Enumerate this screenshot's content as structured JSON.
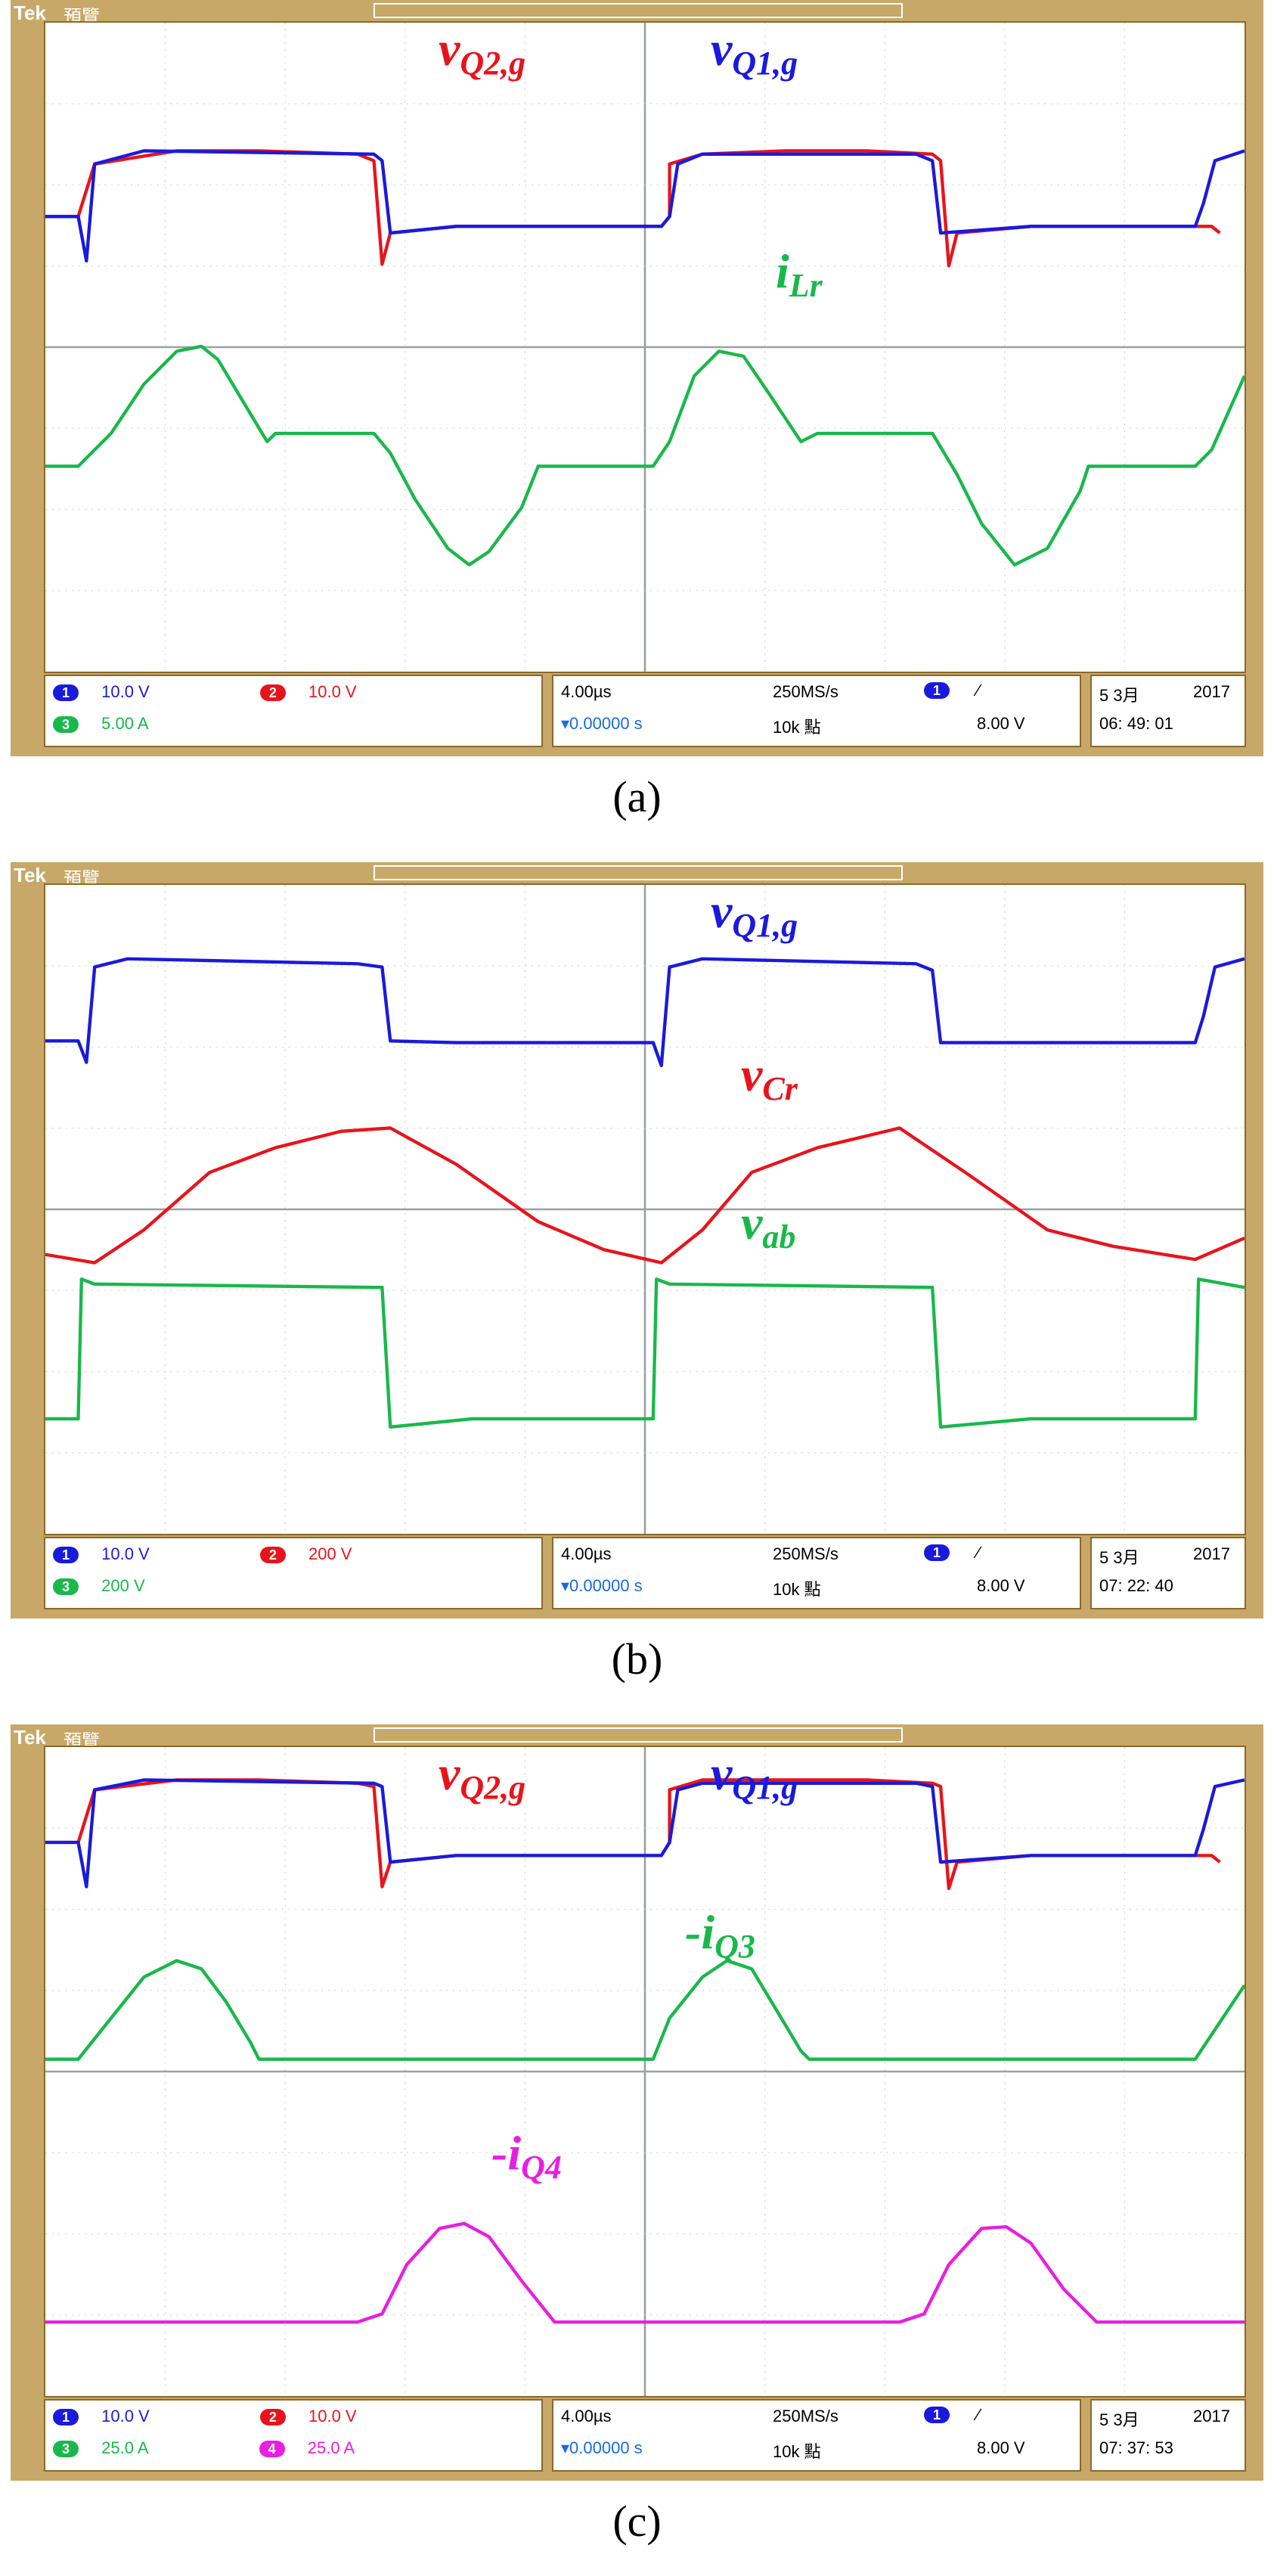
{
  "chart_data": [
    {
      "type": "line",
      "panel": "a",
      "caption": "(a)",
      "header": {
        "brand": "Tek",
        "mode": "預覽"
      },
      "labels": [
        {
          "base": "v",
          "sub": "Q2,g",
          "color": "#e8141c"
        },
        {
          "base": "v",
          "sub": "Q1,g",
          "color": "#1a1adc"
        },
        {
          "base": "i",
          "sub": "Lr",
          "color": "#19b84a"
        }
      ],
      "status": {
        "row1": [
          {
            "ch": "1",
            "scale": "10.0 V",
            "color": "#1a1adc"
          },
          {
            "ch": "2",
            "scale": "10.0 V",
            "color": "#e8141c"
          }
        ],
        "row2": [
          {
            "ch": "3",
            "scale": "5.00 A",
            "color": "#19b84a"
          }
        ],
        "time": "4.00µs",
        "rate": "250MS/s",
        "delay": "▾0.00000 s",
        "points": "10k 點",
        "trig_ch": "1",
        "trig_level": "8.00 V",
        "date": "5 3月",
        "year": "2017",
        "clock": "06: 49: 01"
      },
      "series": [
        {
          "color": "#e8141c",
          "points": [
            [
              0,
              118
            ],
            [
              20,
              118
            ],
            [
              30,
              86
            ],
            [
              80,
              78
            ],
            [
              130,
              78
            ],
            [
              190,
              80
            ],
            [
              200,
              84
            ],
            [
              205,
              147
            ],
            [
              210,
              128
            ],
            [
              250,
              124
            ],
            [
              300,
              124
            ],
            [
              340,
              124
            ],
            [
              375,
              124
            ],
            [
              380,
              118
            ],
            [
              380,
              86
            ],
            [
              400,
              80
            ],
            [
              450,
              78
            ],
            [
              500,
              78
            ],
            [
              540,
              80
            ],
            [
              545,
              84
            ],
            [
              550,
              148
            ],
            [
              555,
              128
            ],
            [
              600,
              124
            ],
            [
              650,
              124
            ],
            [
              700,
              124
            ],
            [
              710,
              124
            ],
            [
              715,
              128
            ]
          ]
        },
        {
          "color": "#1a1adc",
          "points": [
            [
              0,
              118
            ],
            [
              20,
              118
            ],
            [
              25,
              145
            ],
            [
              30,
              86
            ],
            [
              60,
              78
            ],
            [
              200,
              80
            ],
            [
              205,
              84
            ],
            [
              210,
              128
            ],
            [
              250,
              124
            ],
            [
              375,
              124
            ],
            [
              380,
              118
            ],
            [
              385,
              86
            ],
            [
              400,
              80
            ],
            [
              530,
              80
            ],
            [
              540,
              84
            ],
            [
              545,
              128
            ],
            [
              600,
              124
            ],
            [
              700,
              124
            ],
            [
              705,
              110
            ],
            [
              712,
              84
            ],
            [
              730,
              78
            ]
          ]
        },
        {
          "color": "#19b84a",
          "points": [
            [
              0,
              270
            ],
            [
              20,
              270
            ],
            [
              40,
              250
            ],
            [
              60,
              220
            ],
            [
              80,
              200
            ],
            [
              95,
              197
            ],
            [
              105,
              205
            ],
            [
              120,
              230
            ],
            [
              135,
              255
            ],
            [
              140,
              250
            ],
            [
              200,
              250
            ],
            [
              210,
              262
            ],
            [
              225,
              290
            ],
            [
              245,
              320
            ],
            [
              258,
              330
            ],
            [
              270,
              322
            ],
            [
              290,
              295
            ],
            [
              300,
              270
            ],
            [
              370,
              270
            ],
            [
              380,
              255
            ],
            [
              395,
              215
            ],
            [
              410,
              200
            ],
            [
              425,
              203
            ],
            [
              440,
              225
            ],
            [
              460,
              255
            ],
            [
              470,
              250
            ],
            [
              540,
              250
            ],
            [
              555,
              275
            ],
            [
              570,
              305
            ],
            [
              590,
              330
            ],
            [
              610,
              320
            ],
            [
              630,
              285
            ],
            [
              635,
              270
            ],
            [
              700,
              270
            ],
            [
              710,
              260
            ],
            [
              730,
              215
            ]
          ]
        }
      ]
    },
    {
      "type": "line",
      "panel": "b",
      "caption": "(b)",
      "header": {
        "brand": "Tek",
        "mode": "預覽"
      },
      "labels": [
        {
          "base": "v",
          "sub": "Q1,g",
          "color": "#1a1adc"
        },
        {
          "base": "v",
          "sub": "Cr",
          "color": "#e8141c"
        },
        {
          "base": "v",
          "sub": "ab",
          "color": "#19b84a"
        }
      ],
      "status": {
        "row1": [
          {
            "ch": "1",
            "scale": "10.0 V",
            "color": "#1a1adc"
          },
          {
            "ch": "2",
            "scale": "200 V",
            "color": "#e8141c"
          }
        ],
        "row2": [
          {
            "ch": "3",
            "scale": "200 V",
            "color": "#19b84a"
          }
        ],
        "time": "4.00µs",
        "rate": "250MS/s",
        "delay": "▾0.00000 s",
        "points": "10k 點",
        "trig_ch": "1",
        "trig_level": "8.00 V",
        "date": "5 3月",
        "year": "2017",
        "clock": "07: 22: 40"
      },
      "series": [
        {
          "color": "#1a1adc",
          "points": [
            [
              0,
              95
            ],
            [
              20,
              95
            ],
            [
              25,
              108
            ],
            [
              30,
              50
            ],
            [
              50,
              45
            ],
            [
              190,
              48
            ],
            [
              205,
              50
            ],
            [
              210,
              95
            ],
            [
              250,
              96
            ],
            [
              370,
              96
            ],
            [
              375,
              110
            ],
            [
              380,
              50
            ],
            [
              400,
              45
            ],
            [
              530,
              48
            ],
            [
              540,
              52
            ],
            [
              545,
              96
            ],
            [
              600,
              96
            ],
            [
              700,
              96
            ],
            [
              705,
              80
            ],
            [
              712,
              50
            ],
            [
              730,
              45
            ]
          ]
        },
        {
          "color": "#e8141c",
          "points": [
            [
              0,
              225
            ],
            [
              30,
              230
            ],
            [
              60,
              210
            ],
            [
              100,
              175
            ],
            [
              140,
              160
            ],
            [
              180,
              150
            ],
            [
              210,
              148
            ],
            [
              250,
              170
            ],
            [
              300,
              205
            ],
            [
              340,
              222
            ],
            [
              375,
              230
            ],
            [
              400,
              210
            ],
            [
              430,
              175
            ],
            [
              470,
              160
            ],
            [
              520,
              148
            ],
            [
              560,
              175
            ],
            [
              610,
              210
            ],
            [
              650,
              220
            ],
            [
              700,
              228
            ],
            [
              730,
              215
            ]
          ]
        },
        {
          "color": "#19b84a",
          "points": [
            [
              0,
              325
            ],
            [
              20,
              325
            ],
            [
              22,
              240
            ],
            [
              30,
              243
            ],
            [
              200,
              245
            ],
            [
              205,
              245
            ],
            [
              210,
              330
            ],
            [
              260,
              325
            ],
            [
              370,
              325
            ],
            [
              372,
              240
            ],
            [
              380,
              243
            ],
            [
              540,
              245
            ],
            [
              545,
              330
            ],
            [
              600,
              325
            ],
            [
              700,
              325
            ],
            [
              702,
              240
            ],
            [
              730,
              245
            ]
          ]
        }
      ]
    },
    {
      "type": "line",
      "panel": "c",
      "caption": "(c)",
      "header": {
        "brand": "Tek",
        "mode": "預覽"
      },
      "labels": [
        {
          "base": "v",
          "sub": "Q2,g",
          "color": "#e8141c"
        },
        {
          "base": "v",
          "sub": "Q1,g",
          "color": "#1a1adc"
        },
        {
          "base": "-i",
          "sub": "Q3",
          "color": "#19b84a"
        },
        {
          "base": "-i",
          "sub": "Q4",
          "color": "#e81ee0"
        }
      ],
      "status": {
        "row1": [
          {
            "ch": "1",
            "scale": "10.0 V",
            "color": "#1a1adc"
          },
          {
            "ch": "2",
            "scale": "10.0 V",
            "color": "#e8141c"
          }
        ],
        "row2": [
          {
            "ch": "3",
            "scale": "25.0 A",
            "color": "#19b84a"
          },
          {
            "ch": "4",
            "scale": "25.0 A",
            "color": "#e81ee0"
          }
        ],
        "time": "4.00µs",
        "rate": "250MS/s",
        "delay": "▾0.00000 s",
        "points": "10k 點",
        "trig_ch": "1",
        "trig_level": "8.00 V",
        "date": "5 3月",
        "year": "2017",
        "clock": "07: 37: 53"
      },
      "series": [
        {
          "color": "#e8141c",
          "points": [
            [
              0,
              58
            ],
            [
              20,
              58
            ],
            [
              30,
              26
            ],
            [
              80,
              20
            ],
            [
              130,
              20
            ],
            [
              190,
              22
            ],
            [
              200,
              24
            ],
            [
              205,
              85
            ],
            [
              210,
              70
            ],
            [
              250,
              66
            ],
            [
              375,
              66
            ],
            [
              380,
              58
            ],
            [
              380,
              26
            ],
            [
              400,
              20
            ],
            [
              500,
              20
            ],
            [
              540,
              22
            ],
            [
              545,
              24
            ],
            [
              550,
              86
            ],
            [
              555,
              70
            ],
            [
              600,
              66
            ],
            [
              710,
              66
            ],
            [
              715,
              70
            ]
          ]
        },
        {
          "color": "#1a1adc",
          "points": [
            [
              0,
              58
            ],
            [
              20,
              58
            ],
            [
              25,
              85
            ],
            [
              30,
              26
            ],
            [
              60,
              20
            ],
            [
              200,
              22
            ],
            [
              205,
              24
            ],
            [
              210,
              70
            ],
            [
              250,
              66
            ],
            [
              375,
              66
            ],
            [
              380,
              58
            ],
            [
              385,
              26
            ],
            [
              400,
              22
            ],
            [
              530,
              22
            ],
            [
              540,
              24
            ],
            [
              545,
              70
            ],
            [
              600,
              66
            ],
            [
              700,
              66
            ],
            [
              705,
              50
            ],
            [
              712,
              24
            ],
            [
              730,
              20
            ]
          ]
        },
        {
          "color": "#19b84a",
          "points": [
            [
              0,
              190
            ],
            [
              20,
              190
            ],
            [
              40,
              165
            ],
            [
              60,
              140
            ],
            [
              80,
              130
            ],
            [
              95,
              135
            ],
            [
              110,
              155
            ],
            [
              125,
              180
            ],
            [
              130,
              190
            ],
            [
              250,
              190
            ],
            [
              370,
              190
            ],
            [
              380,
              165
            ],
            [
              400,
              140
            ],
            [
              415,
              130
            ],
            [
              430,
              135
            ],
            [
              445,
              160
            ],
            [
              460,
              185
            ],
            [
              465,
              190
            ],
            [
              600,
              190
            ],
            [
              700,
              190
            ],
            [
              710,
              175
            ],
            [
              730,
              145
            ]
          ]
        },
        {
          "color": "#e81ee0",
          "points": [
            [
              0,
              350
            ],
            [
              150,
              350
            ],
            [
              190,
              350
            ],
            [
              205,
              345
            ],
            [
              220,
              315
            ],
            [
              240,
              293
            ],
            [
              255,
              290
            ],
            [
              270,
              298
            ],
            [
              290,
              325
            ],
            [
              310,
              350
            ],
            [
              400,
              350
            ],
            [
              520,
              350
            ],
            [
              535,
              345
            ],
            [
              550,
              315
            ],
            [
              570,
              293
            ],
            [
              585,
              292
            ],
            [
              600,
              302
            ],
            [
              620,
              330
            ],
            [
              640,
              350
            ],
            [
              730,
              350
            ]
          ]
        }
      ]
    }
  ]
}
